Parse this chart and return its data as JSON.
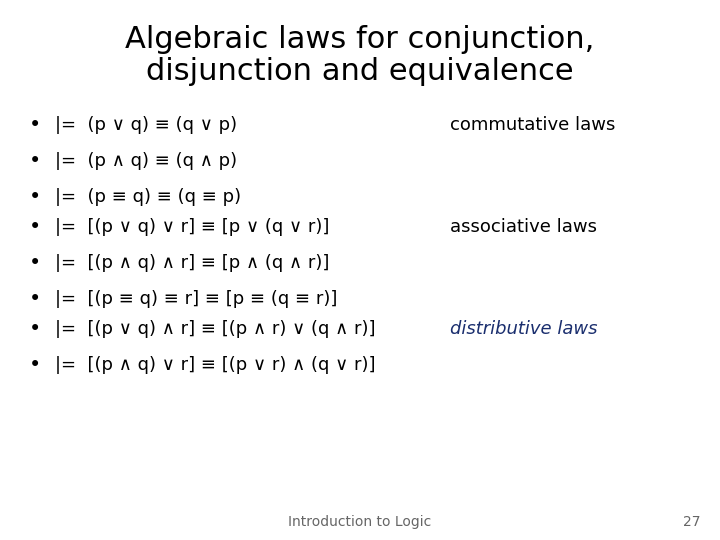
{
  "title_line1": "Algebraic laws for conjunction,",
  "title_line2": "disjunction and equivalence",
  "title_fontsize": 22,
  "title_color": "#000000",
  "background_color": "#ffffff",
  "bullet_color": "#000000",
  "bullet_fontsize": 13,
  "label_commutative": "commutative laws",
  "label_associative": "associative laws",
  "label_distributive": "distributive laws",
  "label_color_commutative": "#000000",
  "label_color_associative": "#000000",
  "label_color_distributive": "#1a2e6e",
  "label_fontsize": 13,
  "footer_text": "Introduction to Logic",
  "footer_page": "27",
  "footer_fontsize": 10,
  "footer_color": "#666666",
  "commutative_laws": [
    "|=  (p ∨ q) ≡ (q ∨ p)",
    "|=  (p ∧ q) ≡ (q ∧ p)",
    "|=  (p ≡ q) ≡ (q ≡ p)"
  ],
  "associative_laws": [
    "|=  [(p ∨ q) ∨ r] ≡ [p ∨ (q ∨ r)]",
    "|=  [(p ∧ q) ∧ r] ≡ [p ∧ (q ∧ r)]",
    "|=  [(p ≡ q) ≡ r] ≡ [p ≡ (q ≡ r)]"
  ],
  "distributive_laws": [
    "|=  [(p ∨ q) ∧ r] ≡ [(p ∧ r) ∨ (q ∧ r)]",
    "|=  [(p ∧ q) ∨ r] ≡ [(p ∨ r) ∧ (q ∨ r)]"
  ]
}
